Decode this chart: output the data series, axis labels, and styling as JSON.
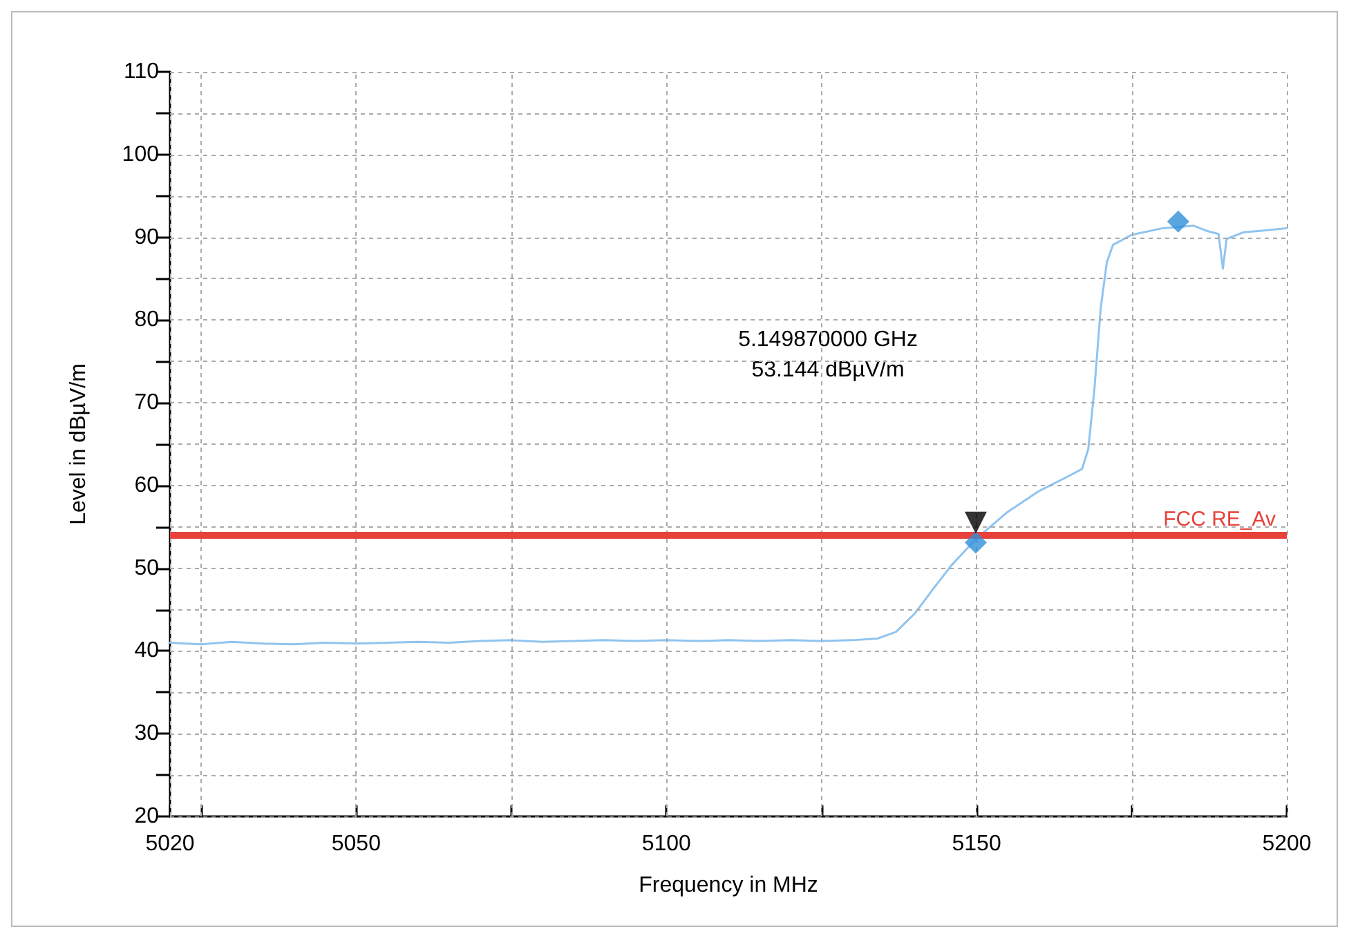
{
  "chart_data": {
    "type": "line",
    "xlabel": "Frequency in MHz",
    "ylabel": "Level in dBµV/m",
    "xlim": [
      5020,
      5200
    ],
    "xticks": [
      5020,
      {
        "value": 5025,
        "label": null
      },
      5050,
      {
        "value": 5075,
        "label": null
      },
      5100,
      {
        "value": 5125,
        "label": null
      },
      5150,
      {
        "value": 5175,
        "label": null
      },
      5200
    ],
    "ylim": [
      20,
      110
    ],
    "yticks": [
      20,
      {
        "value": 25,
        "label": null
      },
      30,
      {
        "value": 35,
        "label": null
      },
      40,
      {
        "value": 45,
        "label": null
      },
      50,
      {
        "value": 55,
        "label": null
      },
      60,
      {
        "value": 65,
        "label": null
      },
      70,
      {
        "value": 75,
        "label": null
      },
      80,
      {
        "value": 85,
        "label": null
      },
      90,
      {
        "value": 95,
        "label": null
      },
      100,
      {
        "value": 105,
        "label": null
      },
      110
    ],
    "grid": true,
    "series": [
      {
        "color": "#8fc4f0",
        "line_style": "solid",
        "marker": "none",
        "x": [
          5020,
          5025,
          5030,
          5035,
          5040,
          5045,
          5050,
          5055,
          5060,
          5065,
          5070,
          5075,
          5080,
          5085,
          5090,
          5095,
          5100,
          5105,
          5110,
          5115,
          5120,
          5125,
          5130,
          5134,
          5137,
          5140,
          5143,
          5146,
          5150,
          5155,
          5160,
          5165,
          5167,
          5168,
          5169,
          5170,
          5171,
          5172,
          5175,
          5180,
          5185,
          5187,
          5189,
          5189.7,
          5190.3,
          5193,
          5196,
          5200
        ],
        "values": [
          41.0,
          40.8,
          41.1,
          40.9,
          40.8,
          41.0,
          40.9,
          41.0,
          41.1,
          41.0,
          41.2,
          41.3,
          41.1,
          41.2,
          41.3,
          41.2,
          41.3,
          41.2,
          41.3,
          41.2,
          41.3,
          41.2,
          41.3,
          41.5,
          42.3,
          44.5,
          47.5,
          50.4,
          53.6,
          56.8,
          59.3,
          61.2,
          62.0,
          64.4,
          71.7,
          81.4,
          87.0,
          89.1,
          90.3,
          91.1,
          91.4,
          90.8,
          90.4,
          86.2,
          89.8,
          90.6,
          90.8,
          91.1
        ]
      },
      {
        "type": "scatter",
        "color": "#2f8fd8",
        "marker": "diamond",
        "x": [
          5149.87,
          5182.5
        ],
        "values": [
          53.1,
          91.9
        ]
      },
      {
        "type": "scatter",
        "color": "#000000",
        "marker": "triangle",
        "x": [
          5149.87
        ],
        "values": [
          55.5
        ]
      }
    ],
    "ref_lines": [
      {
        "axis": "y",
        "value": 54,
        "label": "FCC RE_Av",
        "color": "#e8403a",
        "line_style": "solid"
      }
    ],
    "annotations": [
      "5.149870000 GHz\n53.144 dBµV/m"
    ]
  }
}
